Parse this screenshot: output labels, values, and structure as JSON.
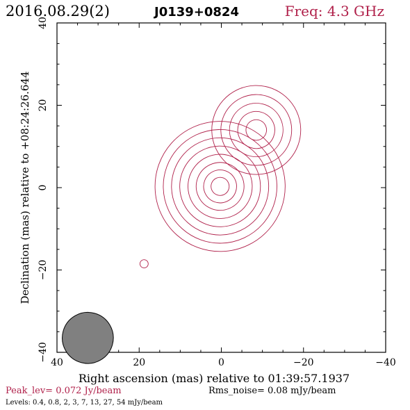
{
  "header": {
    "date": "2016.08.29(2)",
    "source": "J0139+0824",
    "freq": "Freq: 4.3 GHz"
  },
  "footer": {
    "peak": "Peak_lev=  0.072 Jy/beam",
    "rms": "Rms_noise= 0.08 mJy/beam",
    "levels": "Levels: 0.4, 0.8,    2,    3,    7,   13,   27,   54 mJy/beam"
  },
  "colors": {
    "contour": "#b0204a",
    "header_red": "#b0204a",
    "beam_fill": "#808080",
    "axes": "#000000"
  },
  "chart_data": {
    "type": "contour",
    "xlabel": "Right ascension (mas) relative to 01:39:57.1937",
    "ylabel": "Declination (mas) relative to +08:24:26.644",
    "xlim": [
      40,
      -40
    ],
    "ylim": [
      -40,
      40
    ],
    "xticks": [
      40,
      20,
      0,
      -20,
      -40
    ],
    "yticks": [
      -40,
      -20,
      0,
      20,
      40
    ],
    "xtick_labels": [
      "40",
      "20",
      "0",
      "−20",
      "−40"
    ],
    "ytick_labels": [
      "−40",
      "−20",
      "0",
      "20",
      "40"
    ],
    "levels_mJy": [
      0.4,
      0.8,
      2,
      3,
      7,
      13,
      27,
      54
    ],
    "components": [
      {
        "x": 0.3,
        "y": 0.3,
        "pa_deg": 20,
        "major": [
          2.2,
          4.0,
          5.8,
          7.8,
          9.8,
          11.8,
          13.8,
          15.8
        ],
        "minor": [
          1.2,
          1.8,
          2.5,
          3.2,
          3.9,
          4.7,
          5.5,
          6.3
        ]
      },
      {
        "x": -8.5,
        "y": 14.0,
        "pa_deg": 20,
        "major": [
          2.5,
          4.5,
          6.5,
          8.6,
          10.8
        ],
        "minor": [
          1.0,
          1.6,
          2.2,
          2.9,
          3.6
        ]
      },
      {
        "x": 18.8,
        "y": -18.5,
        "pa_deg": 15,
        "major": [
          1.0
        ],
        "minor": [
          0.28
        ]
      }
    ],
    "beam": {
      "x": 32.5,
      "y": -36.5,
      "major": 6.2,
      "minor": 2.2,
      "pa_deg": 15
    }
  }
}
